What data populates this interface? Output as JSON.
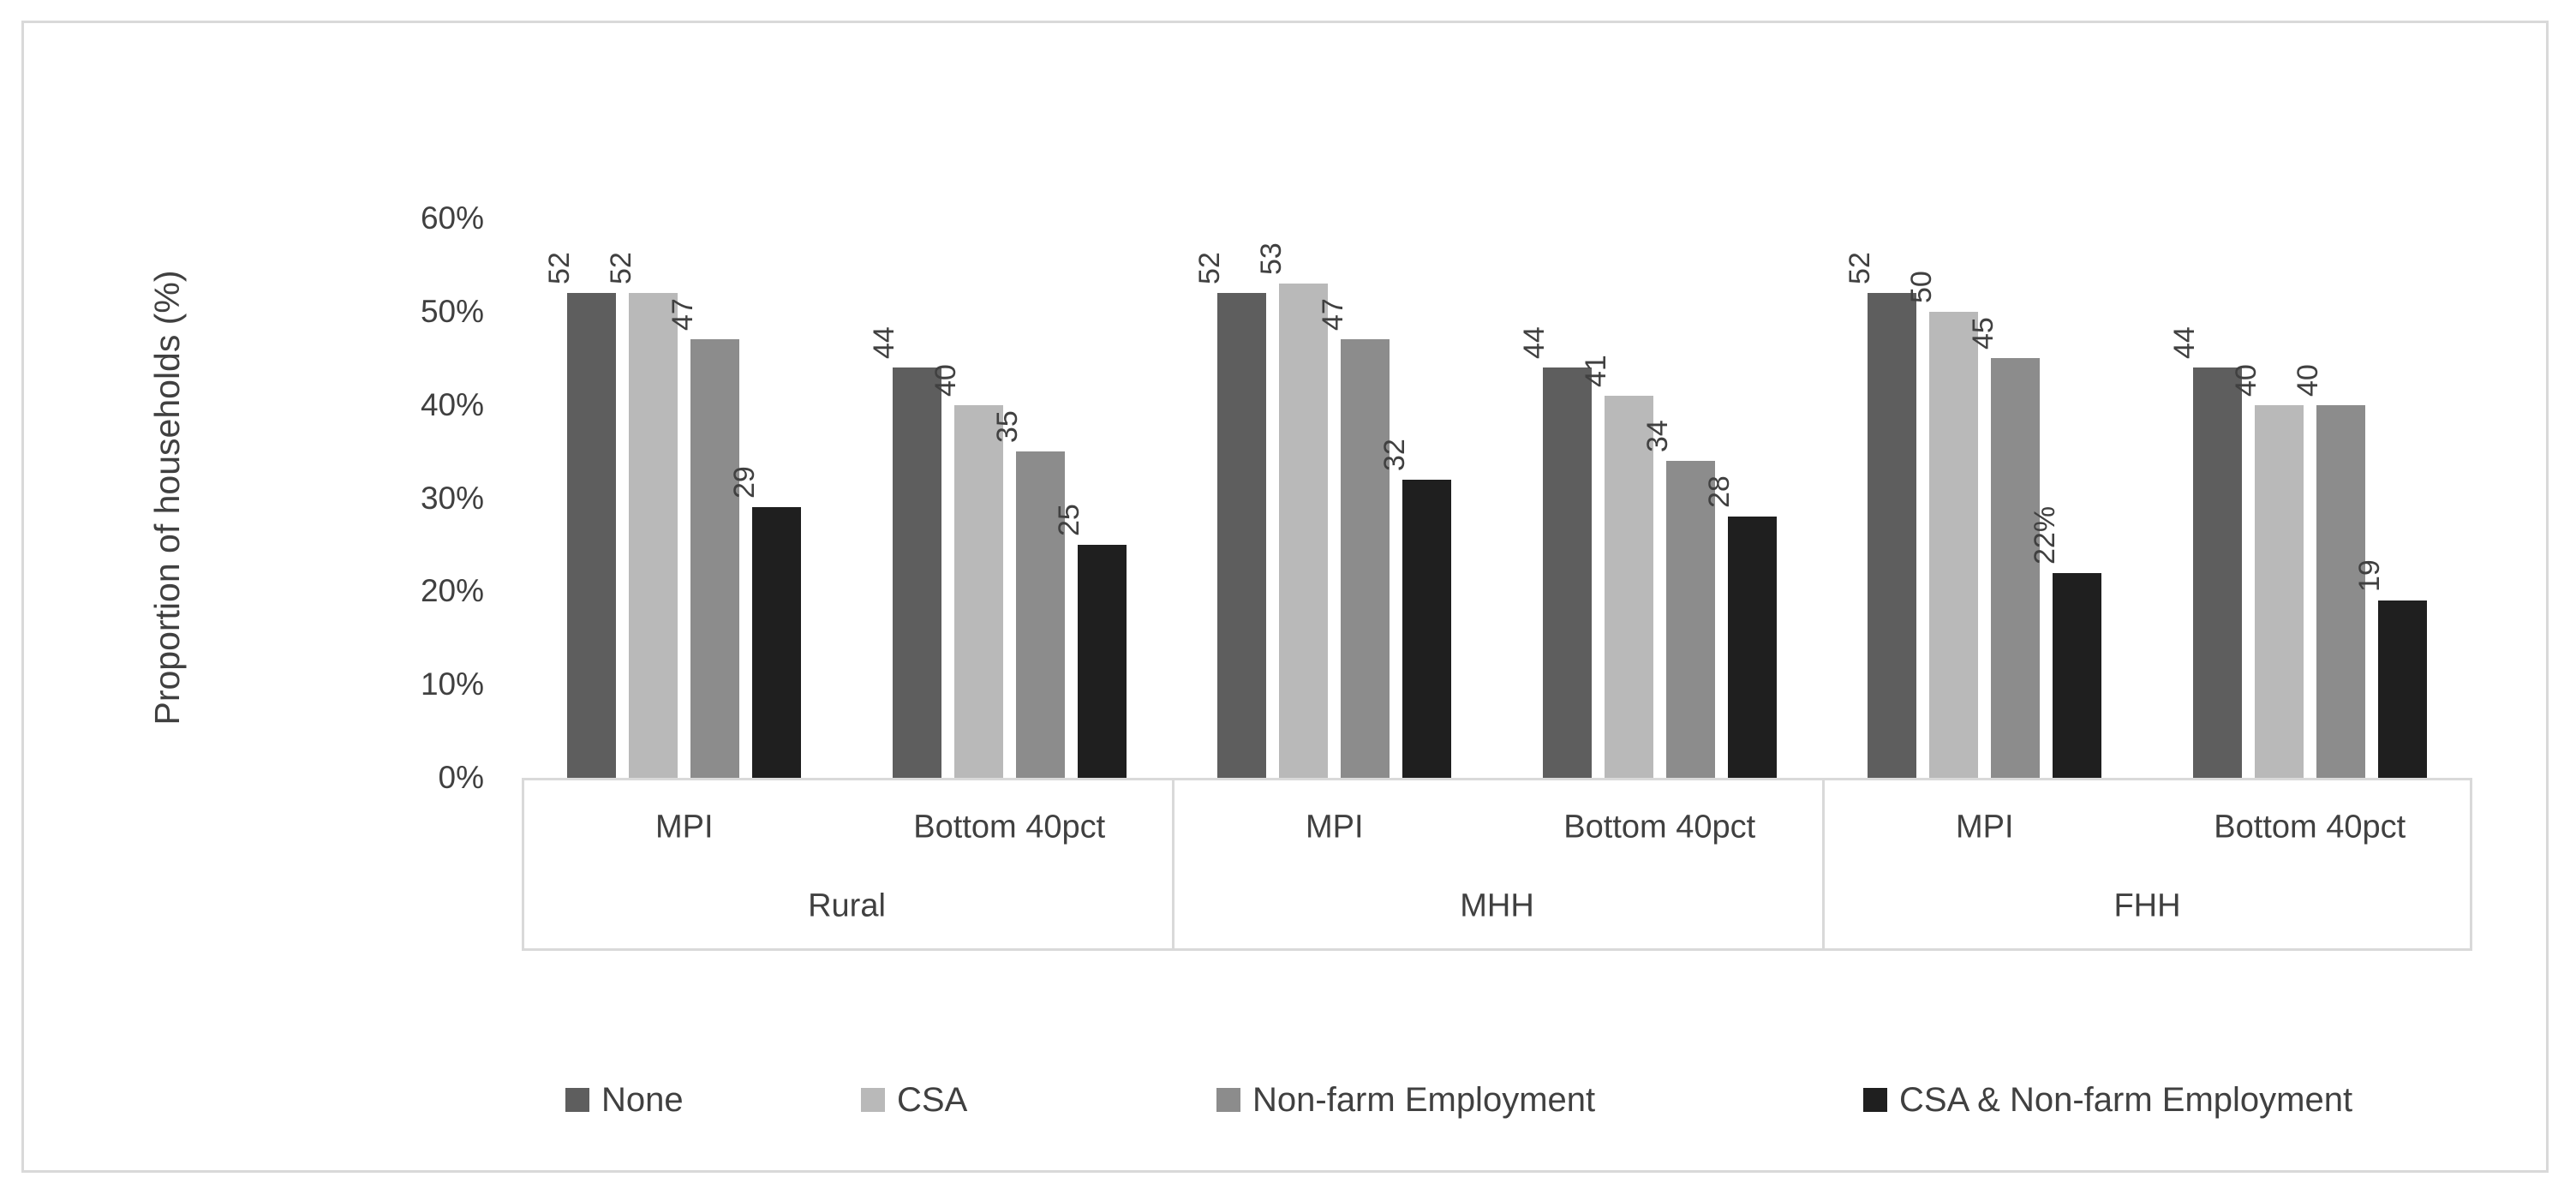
{
  "chart_data": {
    "type": "bar",
    "title": "",
    "ylabel": "Proportion of households (%)",
    "xlabel": "",
    "y_ticks": [
      "0%",
      "10%",
      "20%",
      "30%",
      "40%",
      "50%",
      "60%"
    ],
    "ylim": [
      0,
      60
    ],
    "grid": false,
    "legend_position": "bottom",
    "groups": [
      "Rural",
      "MHH",
      "FHH"
    ],
    "subcategories": [
      "MPI",
      "Bottom 40pct"
    ],
    "categories": [
      "Rural MPI",
      "Rural Bottom 40pct",
      "MHH MPI",
      "MHH Bottom 40pct",
      "FHH MPI",
      "FHH Bottom 40pct"
    ],
    "series": [
      {
        "name": "None",
        "color": "#5e5e5e",
        "values": [
          52,
          44,
          52,
          44,
          52,
          44
        ],
        "labels": [
          "52",
          "44",
          "52",
          "44",
          "52",
          "44"
        ]
      },
      {
        "name": "CSA",
        "color": "#b9b9b9",
        "values": [
          52,
          40,
          53,
          41,
          50,
          40
        ],
        "labels": [
          "52",
          "40",
          "53",
          "41",
          "50",
          "40"
        ]
      },
      {
        "name": "Non-farm Employment",
        "color": "#8c8c8c",
        "values": [
          47,
          35,
          47,
          34,
          45,
          40
        ],
        "labels": [
          "47",
          "35",
          "47",
          "34",
          "45",
          "40"
        ]
      },
      {
        "name": "CSA & Non-farm Employment",
        "color": "#1f1f1f",
        "values": [
          29,
          25,
          32,
          28,
          22,
          19
        ],
        "labels": [
          "29",
          "25",
          "32",
          "28",
          "22%",
          "19"
        ]
      }
    ]
  }
}
